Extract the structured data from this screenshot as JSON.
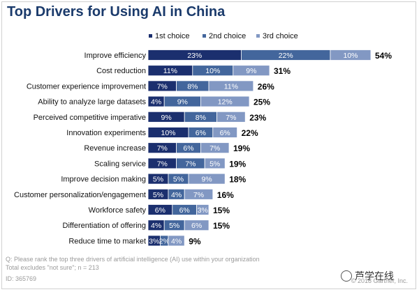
{
  "title": "Top Drivers for Using AI in China",
  "legend": [
    "1st choice",
    "2nd choice",
    "3rd choice"
  ],
  "colors": {
    "first": "#1b2f6e",
    "second": "#43669c",
    "third": "#8298c3",
    "title": "#1a3a6b"
  },
  "chart_data": {
    "type": "bar",
    "orientation": "horizontal-stacked",
    "title": "Top Drivers for Using AI in China",
    "categories": [
      "Improve efficiency",
      "Cost reduction",
      "Customer experience improvement",
      "Ability to analyze large datasets",
      "Perceived competitive imperative",
      "Innovation experiments",
      "Revenue increase",
      "Scaling service",
      "Improve decision making",
      "Customer personalization/engagement",
      "Workforce safety",
      "Differentiation of offering",
      "Reduce time to market"
    ],
    "series": [
      {
        "name": "1st choice",
        "values": [
          23,
          11,
          7,
          4,
          9,
          10,
          7,
          7,
          5,
          5,
          6,
          4,
          3
        ]
      },
      {
        "name": "2nd choice",
        "values": [
          22,
          10,
          8,
          9,
          8,
          6,
          6,
          7,
          5,
          4,
          6,
          5,
          2
        ]
      },
      {
        "name": "3rd choice",
        "values": [
          10,
          9,
          11,
          12,
          7,
          6,
          7,
          5,
          9,
          7,
          3,
          6,
          4
        ]
      }
    ],
    "totals": [
      "54%",
      "31%",
      "26%",
      "25%",
      "23%",
      "22%",
      "19%",
      "19%",
      "18%",
      "16%",
      "15%",
      "15%",
      "9%"
    ],
    "value_suffix": "%",
    "legend_position": "top-right"
  },
  "footnote": {
    "line1": "Q: Please rank the top three drivers of artificial intelligence (AI) use within your organization",
    "line2": "Total excludes \"not sure\"; n = 213",
    "line3": "ID: 365769"
  },
  "copyright": "© 2018 Gartner, Inc.",
  "watermark": "芦学在线"
}
